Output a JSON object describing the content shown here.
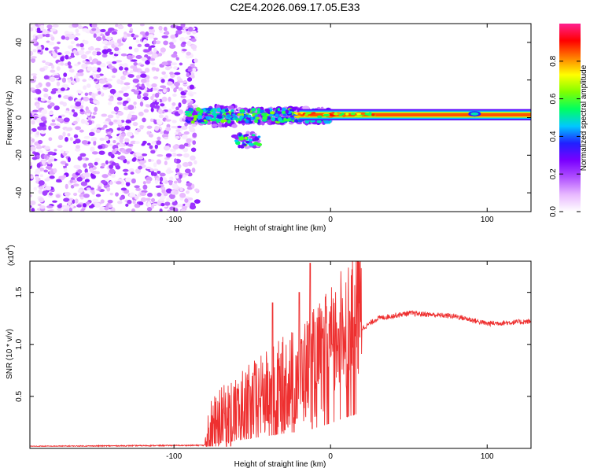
{
  "figure_title": "C2E4.2026.069.17.05.E33",
  "chart_data": [
    {
      "type": "heatmap",
      "name": "spectrogram",
      "xlabel": "Height of straight line (km)",
      "ylabel": "Frequency (Hz)",
      "xlim": [
        -192,
        128
      ],
      "ylim": [
        -50,
        50
      ],
      "xticks": [
        -100,
        0,
        100
      ],
      "xtick_labels": [
        "-100",
        "0",
        "100"
      ],
      "yticks": [
        -40,
        -20,
        0,
        20,
        40
      ],
      "ytick_labels": [
        "-40",
        "-20",
        "0",
        "20",
        "40"
      ],
      "colorbar": {
        "label": "Normalized spectral amplitude",
        "range": [
          0,
          1
        ],
        "ticks": [
          0.0,
          0.2,
          0.4,
          0.6,
          0.8
        ],
        "tick_labels": [
          "0.0",
          "0.2",
          "0.4",
          "0.6",
          "0.8"
        ],
        "colors": [
          "#ffffff",
          "#e8b8ff",
          "#b050ff",
          "#7a00ff",
          "#2020ff",
          "#00c8ff",
          "#00ff60",
          "#80ff00",
          "#ffff00",
          "#ff8000",
          "#ff0000",
          "#ff2090"
        ]
      },
      "regions": [
        {
          "name": "noise",
          "x_range": [
            -192,
            -86
          ],
          "y_range": [
            -50,
            50
          ],
          "amplitude": [
            0.02,
            0.25
          ]
        },
        {
          "name": "transition",
          "x_range": [
            -92,
            0
          ],
          "y_range": [
            -16,
            10
          ],
          "amplitude": [
            0.1,
            0.5
          ]
        },
        {
          "name": "steady-line",
          "x_range": [
            -20,
            128
          ],
          "center_hz": 1.5,
          "halfwidth_hz": 3,
          "amplitude": 0.85
        }
      ]
    },
    {
      "type": "line",
      "name": "snr",
      "xlabel": "Height of straight line (km)",
      "ylabel": "SNR (10 * v/v)",
      "multiplier_label": "(x10",
      "multiplier_exponent": "4",
      "multiplier_close": ")",
      "xlim": [
        -192,
        128
      ],
      "ylim": [
        0,
        1.8
      ],
      "xticks": [
        -100,
        0,
        100
      ],
      "xtick_labels": [
        "-100",
        "0",
        "100"
      ],
      "yticks": [
        0.5,
        1.0,
        1.5
      ],
      "ytick_labels": [
        "0.5",
        "1.0",
        "1.5"
      ],
      "color": "#ee3030",
      "profile_x": [
        -192,
        -80,
        -75,
        -60,
        -40,
        -20,
        -10,
        0,
        10,
        20,
        30,
        50,
        80,
        100,
        128
      ],
      "profile_y": [
        0.02,
        0.03,
        0.15,
        0.25,
        0.4,
        0.55,
        0.65,
        0.8,
        1.0,
        1.15,
        1.25,
        1.3,
        1.27,
        1.2,
        1.22
      ],
      "spikes_x": [
        -13,
        -20,
        -5,
        1,
        5,
        -37
      ],
      "spikes_y": [
        1.78,
        1.5,
        1.15,
        1.0,
        1.15,
        1.4
      ]
    }
  ]
}
